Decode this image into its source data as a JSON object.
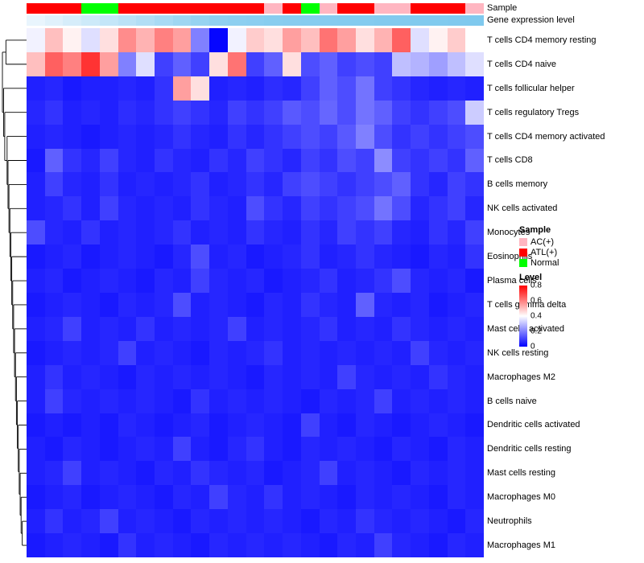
{
  "annotations": {
    "sample_track_label": "Sample",
    "expression_track_label": "Gene expression level"
  },
  "legend": {
    "sample_title": "Sample",
    "sample_items": [
      {
        "label": "AC(+)",
        "color": "#FFB6C1"
      },
      {
        "label": "ATL(+)",
        "color": "#FF0000"
      },
      {
        "label": "Normal",
        "color": "#00FF00"
      }
    ],
    "level_title": "Level",
    "level_ticks": [
      "0.8",
      "0.6",
      "0.4",
      "0.2",
      "0"
    ],
    "level_scale": [
      "#FF0000",
      "#FFFFFF",
      "#0000FF"
    ]
  },
  "chart_data": {
    "type": "heatmap",
    "title": "",
    "n_columns": 25,
    "vmin": 0,
    "vmax": 0.8,
    "colormap": "blue-white-red",
    "rows": [
      "T cells CD4 memory resting",
      "T cells CD4 naive",
      "T cells follicular helper",
      "T cells regulatory Tregs",
      "T cells CD4 memory activated",
      "T cells CD8",
      "B cells memory",
      "NK cells activated",
      "Monocytes",
      "Eosinophils",
      "Plasma cells",
      "T cells gamma delta",
      "Mast cells activated",
      "NK cells resting",
      "Macrophages M2",
      "B cells naive",
      "Dendritic cells activated",
      "Dendritic cells resting",
      "Mast cells resting",
      "Macrophages M0",
      "Neutrophils",
      "Macrophages M1"
    ],
    "values": [
      [
        0.38,
        0.5,
        0.42,
        0.35,
        0.45,
        0.58,
        0.52,
        0.6,
        0.55,
        0.2,
        0.01,
        0.38,
        0.48,
        0.45,
        0.55,
        0.5,
        0.62,
        0.55,
        0.45,
        0.52,
        0.65,
        0.35,
        0.42,
        0.48,
        0.4
      ],
      [
        0.5,
        0.65,
        0.6,
        0.72,
        0.55,
        0.2,
        0.35,
        0.1,
        0.15,
        0.1,
        0.45,
        0.62,
        0.1,
        0.15,
        0.45,
        0.12,
        0.15,
        0.1,
        0.12,
        0.1,
        0.3,
        0.28,
        0.25,
        0.3,
        0.35
      ],
      [
        0.05,
        0.06,
        0.04,
        0.05,
        0.05,
        0.06,
        0.05,
        0.08,
        0.55,
        0.45,
        0.05,
        0.06,
        0.05,
        0.07,
        0.06,
        0.1,
        0.15,
        0.12,
        0.18,
        0.1,
        0.08,
        0.06,
        0.05,
        0.06,
        0.05
      ],
      [
        0.06,
        0.08,
        0.05,
        0.06,
        0.05,
        0.07,
        0.06,
        0.08,
        0.1,
        0.08,
        0.06,
        0.1,
        0.08,
        0.1,
        0.14,
        0.12,
        0.16,
        0.12,
        0.18,
        0.15,
        0.1,
        0.08,
        0.1,
        0.12,
        0.32
      ],
      [
        0.05,
        0.06,
        0.05,
        0.04,
        0.05,
        0.06,
        0.05,
        0.06,
        0.08,
        0.06,
        0.05,
        0.08,
        0.06,
        0.08,
        0.1,
        0.12,
        0.1,
        0.14,
        0.2,
        0.12,
        0.08,
        0.1,
        0.08,
        0.1,
        0.12
      ],
      [
        0.04,
        0.15,
        0.08,
        0.06,
        0.1,
        0.06,
        0.05,
        0.08,
        0.06,
        0.05,
        0.08,
        0.06,
        0.1,
        0.08,
        0.06,
        0.1,
        0.08,
        0.12,
        0.1,
        0.22,
        0.1,
        0.08,
        0.1,
        0.08,
        0.15
      ],
      [
        0.05,
        0.1,
        0.06,
        0.05,
        0.08,
        0.05,
        0.06,
        0.05,
        0.06,
        0.08,
        0.05,
        0.06,
        0.08,
        0.06,
        0.1,
        0.12,
        0.1,
        0.08,
        0.1,
        0.12,
        0.15,
        0.08,
        0.06,
        0.1,
        0.08
      ],
      [
        0.05,
        0.06,
        0.08,
        0.05,
        0.1,
        0.06,
        0.05,
        0.06,
        0.05,
        0.08,
        0.06,
        0.05,
        0.12,
        0.08,
        0.06,
        0.1,
        0.08,
        0.1,
        0.12,
        0.18,
        0.12,
        0.06,
        0.08,
        0.1,
        0.06
      ],
      [
        0.12,
        0.06,
        0.05,
        0.08,
        0.05,
        0.06,
        0.05,
        0.06,
        0.08,
        0.05,
        0.06,
        0.05,
        0.08,
        0.06,
        0.05,
        0.08,
        0.06,
        0.1,
        0.08,
        0.1,
        0.06,
        0.05,
        0.08,
        0.06,
        0.1
      ],
      [
        0.04,
        0.05,
        0.06,
        0.04,
        0.05,
        0.06,
        0.05,
        0.04,
        0.06,
        0.12,
        0.05,
        0.06,
        0.04,
        0.05,
        0.06,
        0.08,
        0.05,
        0.06,
        0.08,
        0.06,
        0.05,
        0.04,
        0.06,
        0.05,
        0.08
      ],
      [
        0.05,
        0.06,
        0.04,
        0.05,
        0.06,
        0.05,
        0.04,
        0.06,
        0.05,
        0.1,
        0.06,
        0.05,
        0.06,
        0.04,
        0.05,
        0.06,
        0.08,
        0.05,
        0.06,
        0.08,
        0.12,
        0.06,
        0.05,
        0.06,
        0.04
      ],
      [
        0.04,
        0.05,
        0.06,
        0.05,
        0.04,
        0.06,
        0.05,
        0.06,
        0.12,
        0.05,
        0.06,
        0.05,
        0.04,
        0.06,
        0.05,
        0.08,
        0.06,
        0.05,
        0.15,
        0.06,
        0.05,
        0.06,
        0.04,
        0.05,
        0.06
      ],
      [
        0.05,
        0.06,
        0.1,
        0.05,
        0.06,
        0.05,
        0.08,
        0.05,
        0.06,
        0.05,
        0.06,
        0.1,
        0.05,
        0.06,
        0.05,
        0.06,
        0.08,
        0.05,
        0.06,
        0.05,
        0.08,
        0.06,
        0.05,
        0.06,
        0.05
      ],
      [
        0.04,
        0.05,
        0.06,
        0.05,
        0.06,
        0.1,
        0.05,
        0.06,
        0.05,
        0.04,
        0.06,
        0.05,
        0.06,
        0.08,
        0.05,
        0.06,
        0.05,
        0.06,
        0.05,
        0.06,
        0.05,
        0.1,
        0.06,
        0.05,
        0.06
      ],
      [
        0.05,
        0.08,
        0.05,
        0.06,
        0.05,
        0.04,
        0.06,
        0.05,
        0.06,
        0.05,
        0.06,
        0.05,
        0.04,
        0.06,
        0.05,
        0.06,
        0.05,
        0.1,
        0.06,
        0.05,
        0.06,
        0.05,
        0.08,
        0.06,
        0.05
      ],
      [
        0.05,
        0.1,
        0.06,
        0.05,
        0.06,
        0.05,
        0.06,
        0.05,
        0.04,
        0.08,
        0.05,
        0.06,
        0.05,
        0.06,
        0.05,
        0.04,
        0.06,
        0.05,
        0.06,
        0.1,
        0.05,
        0.06,
        0.05,
        0.06,
        0.05
      ],
      [
        0.04,
        0.05,
        0.04,
        0.05,
        0.04,
        0.06,
        0.05,
        0.04,
        0.05,
        0.06,
        0.04,
        0.05,
        0.06,
        0.05,
        0.04,
        0.1,
        0.05,
        0.04,
        0.06,
        0.05,
        0.04,
        0.05,
        0.06,
        0.05,
        0.04
      ],
      [
        0.05,
        0.04,
        0.06,
        0.05,
        0.04,
        0.05,
        0.06,
        0.05,
        0.1,
        0.05,
        0.04,
        0.06,
        0.08,
        0.05,
        0.04,
        0.06,
        0.05,
        0.06,
        0.05,
        0.04,
        0.06,
        0.05,
        0.04,
        0.06,
        0.05
      ],
      [
        0.05,
        0.06,
        0.1,
        0.05,
        0.06,
        0.05,
        0.04,
        0.06,
        0.05,
        0.08,
        0.06,
        0.05,
        0.06,
        0.04,
        0.05,
        0.06,
        0.1,
        0.05,
        0.06,
        0.05,
        0.04,
        0.06,
        0.05,
        0.06,
        0.05
      ],
      [
        0.04,
        0.05,
        0.06,
        0.04,
        0.05,
        0.06,
        0.05,
        0.04,
        0.06,
        0.05,
        0.1,
        0.06,
        0.05,
        0.08,
        0.05,
        0.06,
        0.05,
        0.04,
        0.06,
        0.05,
        0.06,
        0.05,
        0.04,
        0.06,
        0.05
      ],
      [
        0.05,
        0.08,
        0.05,
        0.06,
        0.1,
        0.05,
        0.06,
        0.05,
        0.04,
        0.06,
        0.05,
        0.06,
        0.05,
        0.06,
        0.05,
        0.04,
        0.06,
        0.05,
        0.08,
        0.06,
        0.05,
        0.06,
        0.05,
        0.04,
        0.06
      ],
      [
        0.04,
        0.05,
        0.06,
        0.05,
        0.04,
        0.08,
        0.05,
        0.06,
        0.05,
        0.04,
        0.06,
        0.05,
        0.06,
        0.05,
        0.06,
        0.05,
        0.04,
        0.06,
        0.05,
        0.1,
        0.06,
        0.05,
        0.04,
        0.06,
        0.05
      ]
    ],
    "column_annotations": {
      "sample": [
        "ATL(+)",
        "ATL(+)",
        "ATL(+)",
        "Normal",
        "Normal",
        "ATL(+)",
        "ATL(+)",
        "ATL(+)",
        "ATL(+)",
        "ATL(+)",
        "ATL(+)",
        "ATL(+)",
        "ATL(+)",
        "AC(+)",
        "ATL(+)",
        "Normal",
        "AC(+)",
        "ATL(+)",
        "ATL(+)",
        "AC(+)",
        "AC(+)",
        "ATL(+)",
        "ATL(+)",
        "ATL(+)",
        "AC(+)"
      ],
      "expression": [
        0.08,
        0.16,
        0.24,
        0.32,
        0.4,
        0.48,
        0.56,
        0.64,
        0.72,
        0.8,
        0.85,
        0.88,
        0.9,
        0.92,
        0.93,
        0.94,
        0.95,
        0.96,
        0.96,
        0.97,
        0.97,
        0.98,
        0.98,
        0.99,
        1.0
      ]
    },
    "sample_color_map": {
      "AC(+)": "#FFB6C1",
      "ATL(+)": "#FF0000",
      "Normal": "#00FF00"
    },
    "expression_scale": {
      "low": "#F2F9FE",
      "high": "#7FC9EE"
    },
    "row_dendrogram": [
      [
        0,
        1,
        0.85
      ],
      [
        2,
        [
          3,
          [
            4,
            [
              5,
              [
                6,
                [
                  7,
                  [
                    8,
                    [
                      9,
                      [
                        10,
                        [
                          11,
                          [
                            12,
                            [
                              13,
                              [
                                14,
                                [
                                  15,
                                  [
                                    16,
                                    [
                                      17,
                                      [
                                        18,
                                        [
                                          19,
                                          [
                                            20,
                                            21,
                                            0.15
                                          ],
                                          0.2
                                        ],
                                        0.24
                                      ],
                                      0.28
                                    ],
                                    0.32
                                  ],
                                  0.36
                                ],
                                0.4
                              ],
                              0.44
                            ],
                            0.48
                          ],
                          0.52
                        ],
                        0.56
                      ],
                      0.6
                    ],
                    0.64
                  ],
                  0.68
                ],
                0.72
              ],
              0.76
            ],
            0.8
          ],
          0.9
        ],
        0.95
      ],
      1.0
    ]
  }
}
